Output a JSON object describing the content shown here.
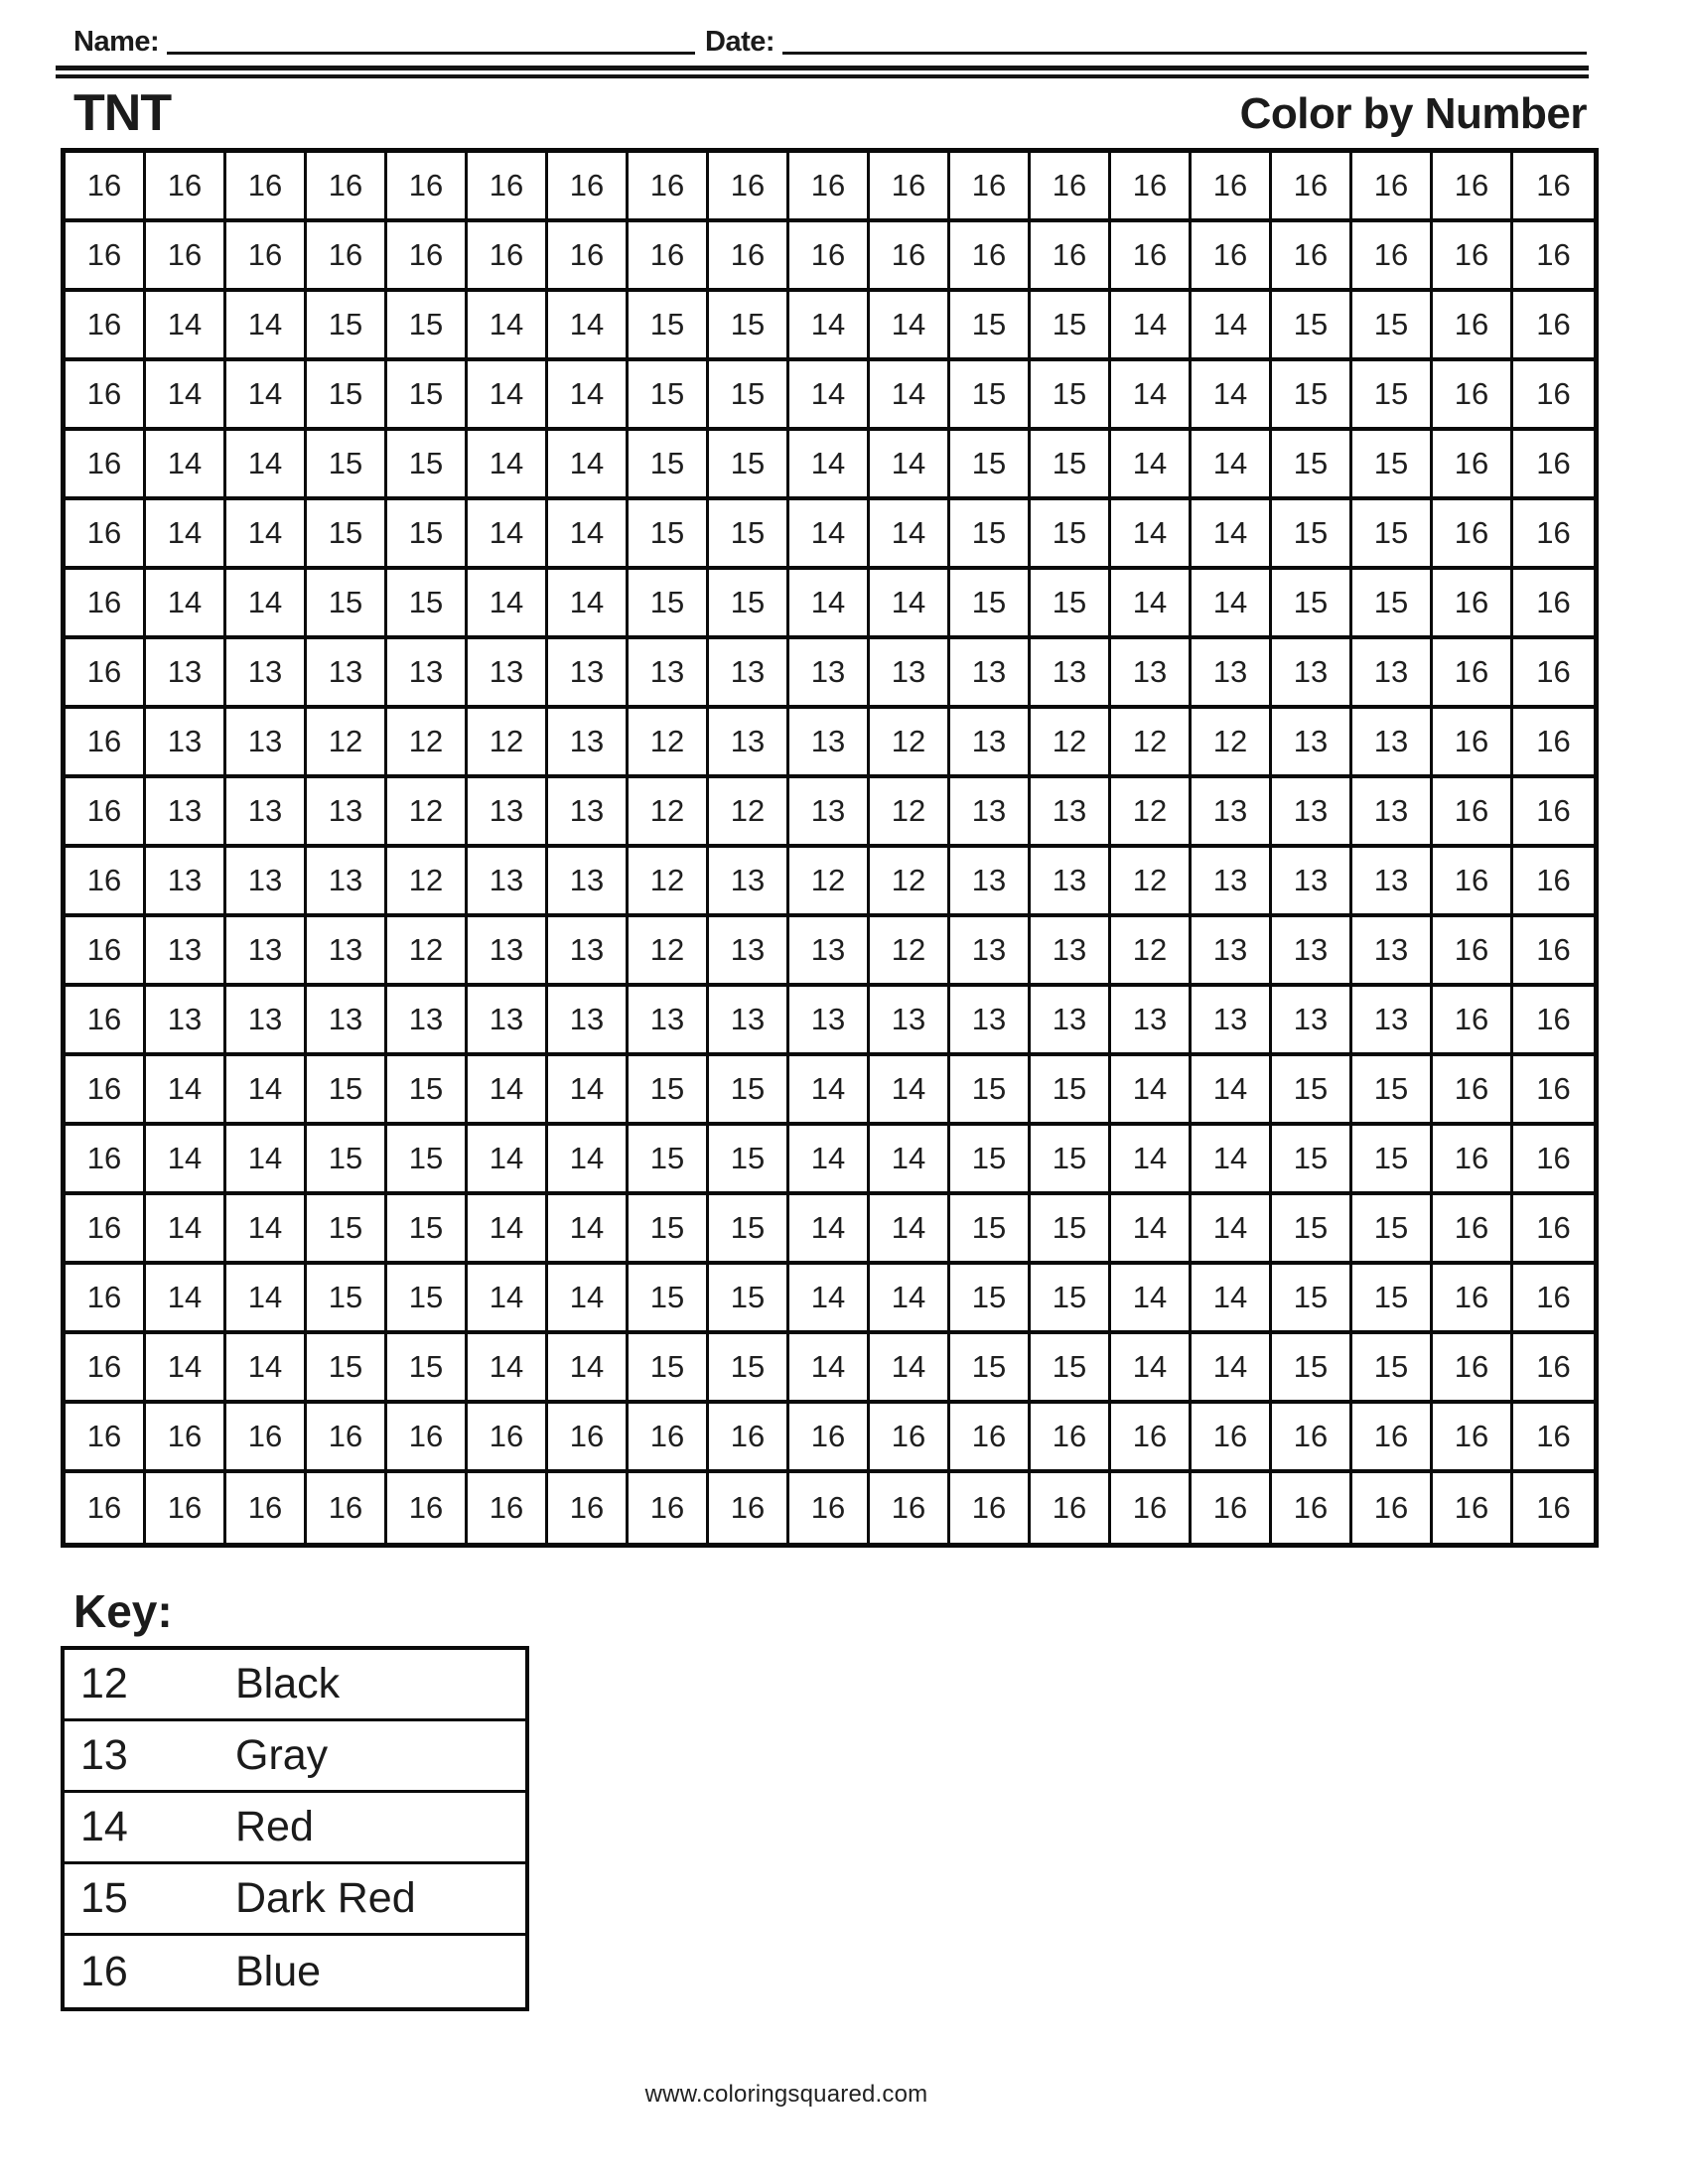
{
  "page": {
    "header": {
      "name_label": "Name:",
      "date_label": "Date:"
    },
    "title": "TNT",
    "worksheet_type": "Color by Number",
    "footer_url": "www.coloringsquared.com"
  },
  "colors": {
    "ink": "#1b1b1b",
    "paper": "#ffffff"
  },
  "grid": {
    "columns": 19,
    "rows": 20,
    "cells": [
      [
        16,
        16,
        16,
        16,
        16,
        16,
        16,
        16,
        16,
        16,
        16,
        16,
        16,
        16,
        16,
        16,
        16,
        16,
        16
      ],
      [
        16,
        16,
        16,
        16,
        16,
        16,
        16,
        16,
        16,
        16,
        16,
        16,
        16,
        16,
        16,
        16,
        16,
        16,
        16
      ],
      [
        16,
        14,
        14,
        15,
        15,
        14,
        14,
        15,
        15,
        14,
        14,
        15,
        15,
        14,
        14,
        15,
        15,
        16,
        16
      ],
      [
        16,
        14,
        14,
        15,
        15,
        14,
        14,
        15,
        15,
        14,
        14,
        15,
        15,
        14,
        14,
        15,
        15,
        16,
        16
      ],
      [
        16,
        14,
        14,
        15,
        15,
        14,
        14,
        15,
        15,
        14,
        14,
        15,
        15,
        14,
        14,
        15,
        15,
        16,
        16
      ],
      [
        16,
        14,
        14,
        15,
        15,
        14,
        14,
        15,
        15,
        14,
        14,
        15,
        15,
        14,
        14,
        15,
        15,
        16,
        16
      ],
      [
        16,
        14,
        14,
        15,
        15,
        14,
        14,
        15,
        15,
        14,
        14,
        15,
        15,
        14,
        14,
        15,
        15,
        16,
        16
      ],
      [
        16,
        13,
        13,
        13,
        13,
        13,
        13,
        13,
        13,
        13,
        13,
        13,
        13,
        13,
        13,
        13,
        13,
        16,
        16
      ],
      [
        16,
        13,
        13,
        12,
        12,
        12,
        13,
        12,
        13,
        13,
        12,
        13,
        12,
        12,
        12,
        13,
        13,
        16,
        16
      ],
      [
        16,
        13,
        13,
        13,
        12,
        13,
        13,
        12,
        12,
        13,
        12,
        13,
        13,
        12,
        13,
        13,
        13,
        16,
        16
      ],
      [
        16,
        13,
        13,
        13,
        12,
        13,
        13,
        12,
        13,
        12,
        12,
        13,
        13,
        12,
        13,
        13,
        13,
        16,
        16
      ],
      [
        16,
        13,
        13,
        13,
        12,
        13,
        13,
        12,
        13,
        13,
        12,
        13,
        13,
        12,
        13,
        13,
        13,
        16,
        16
      ],
      [
        16,
        13,
        13,
        13,
        13,
        13,
        13,
        13,
        13,
        13,
        13,
        13,
        13,
        13,
        13,
        13,
        13,
        16,
        16
      ],
      [
        16,
        14,
        14,
        15,
        15,
        14,
        14,
        15,
        15,
        14,
        14,
        15,
        15,
        14,
        14,
        15,
        15,
        16,
        16
      ],
      [
        16,
        14,
        14,
        15,
        15,
        14,
        14,
        15,
        15,
        14,
        14,
        15,
        15,
        14,
        14,
        15,
        15,
        16,
        16
      ],
      [
        16,
        14,
        14,
        15,
        15,
        14,
        14,
        15,
        15,
        14,
        14,
        15,
        15,
        14,
        14,
        15,
        15,
        16,
        16
      ],
      [
        16,
        14,
        14,
        15,
        15,
        14,
        14,
        15,
        15,
        14,
        14,
        15,
        15,
        14,
        14,
        15,
        15,
        16,
        16
      ],
      [
        16,
        14,
        14,
        15,
        15,
        14,
        14,
        15,
        15,
        14,
        14,
        15,
        15,
        14,
        14,
        15,
        15,
        16,
        16
      ],
      [
        16,
        16,
        16,
        16,
        16,
        16,
        16,
        16,
        16,
        16,
        16,
        16,
        16,
        16,
        16,
        16,
        16,
        16,
        16
      ],
      [
        16,
        16,
        16,
        16,
        16,
        16,
        16,
        16,
        16,
        16,
        16,
        16,
        16,
        16,
        16,
        16,
        16,
        16,
        16
      ]
    ]
  },
  "key": {
    "heading": "Key:",
    "entries": [
      {
        "number": "12",
        "color": "Black"
      },
      {
        "number": "13",
        "color": "Gray"
      },
      {
        "number": "14",
        "color": "Red"
      },
      {
        "number": "15",
        "color": "Dark Red"
      },
      {
        "number": "16",
        "color": "Blue"
      }
    ]
  }
}
